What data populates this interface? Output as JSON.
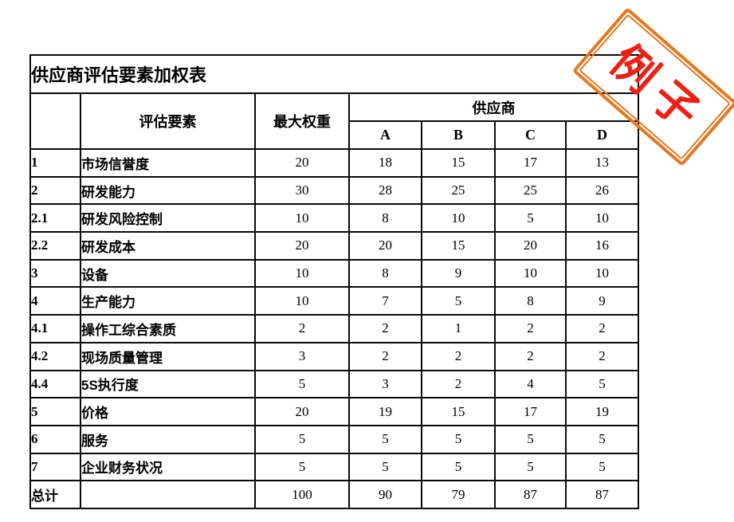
{
  "table": {
    "title": "供应商评估要素加权表",
    "header": {
      "no_col": "",
      "factor": "评估要素",
      "max_weight": "最大权重",
      "supplier_group": "供应商",
      "suppliers": {
        "a": "A",
        "b": "B",
        "c": "C",
        "d": "D"
      }
    },
    "rows": [
      {
        "no": "1",
        "factor": "市场信誉度",
        "max": "20",
        "a": "18",
        "b": "15",
        "c": "17",
        "d": "13"
      },
      {
        "no": "2",
        "factor": "研发能力",
        "max": "30",
        "a": "28",
        "b": "25",
        "c": "25",
        "d": "26"
      },
      {
        "no": "2.1",
        "factor": "研发风险控制",
        "max": "10",
        "a": "8",
        "b": "10",
        "c": "5",
        "d": "10"
      },
      {
        "no": "2.2",
        "factor": "研发成本",
        "max": "20",
        "a": "20",
        "b": "15",
        "c": "20",
        "d": "16"
      },
      {
        "no": "3",
        "factor": "设备",
        "max": "10",
        "a": "8",
        "b": "9",
        "c": "10",
        "d": "10"
      },
      {
        "no": "4",
        "factor": "生产能力",
        "max": "10",
        "a": "7",
        "b": "5",
        "c": "8",
        "d": "9"
      },
      {
        "no": "4.1",
        "factor": "操作工综合素质",
        "max": "2",
        "a": "2",
        "b": "1",
        "c": "2",
        "d": "2"
      },
      {
        "no": "4.2",
        "factor": "现场质量管理",
        "max": "3",
        "a": "2",
        "b": "2",
        "c": "2",
        "d": "2"
      },
      {
        "no": "4.4",
        "factor": "5S执行度",
        "max": "5",
        "a": "3",
        "b": "2",
        "c": "4",
        "d": "5"
      },
      {
        "no": "5",
        "factor": "价格",
        "max": "20",
        "a": "19",
        "b": "15",
        "c": "17",
        "d": "19"
      },
      {
        "no": "6",
        "factor": "服务",
        "max": "5",
        "a": "5",
        "b": "5",
        "c": "5",
        "d": "5"
      },
      {
        "no": "7",
        "factor": "企业财务状况",
        "max": "5",
        "a": "5",
        "b": "5",
        "c": "5",
        "d": "5"
      }
    ],
    "total": {
      "label": "总计",
      "factor": "",
      "max": "100",
      "a": "90",
      "b": "79",
      "c": "87",
      "d": "87"
    }
  },
  "stamp": {
    "text": "例子",
    "border_color": "#e8761f",
    "text_color": "#ee1f13"
  }
}
